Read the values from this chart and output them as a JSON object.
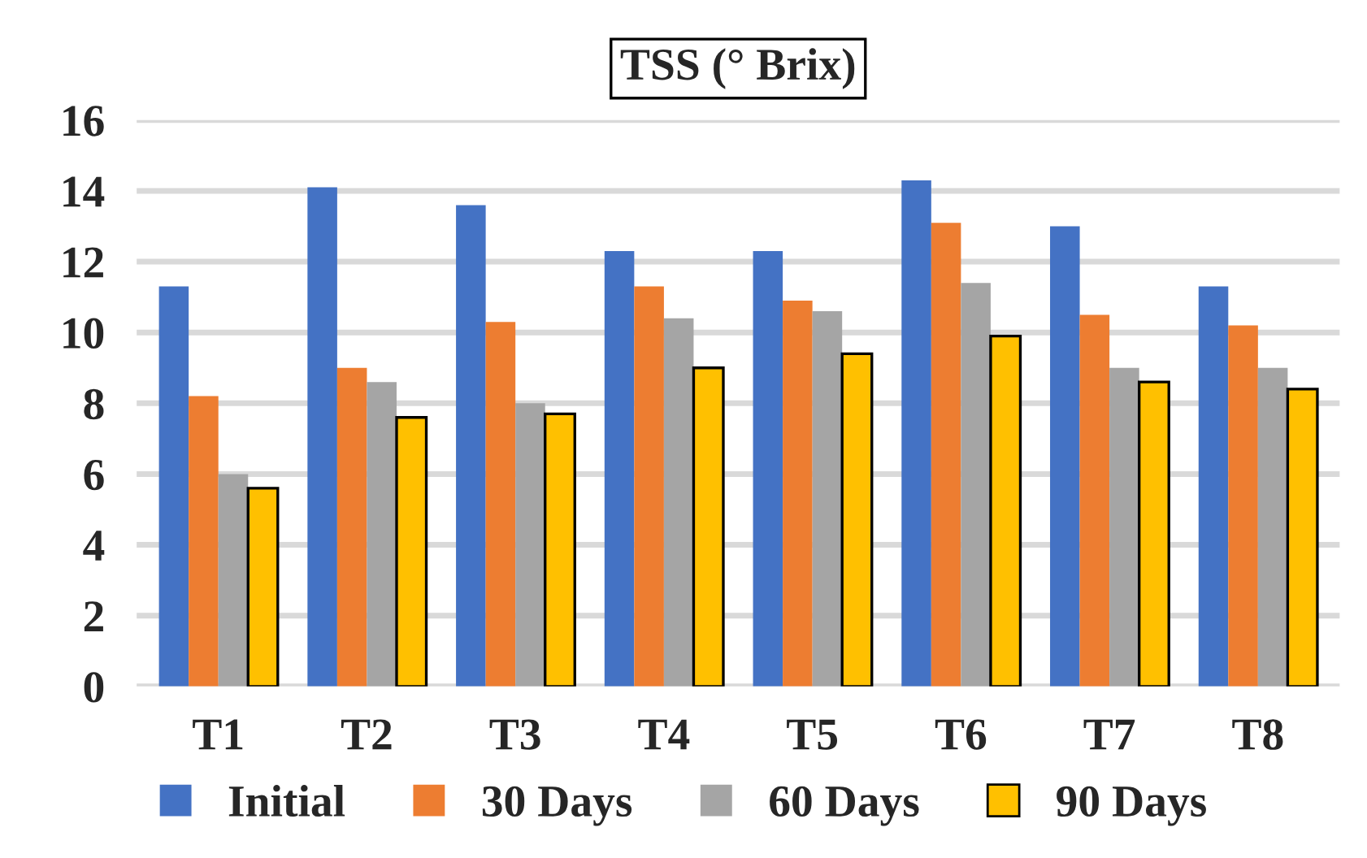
{
  "chart_data": {
    "type": "bar",
    "title": "TSS (° Brix)",
    "categories": [
      "T1",
      "T2",
      "T3",
      "T4",
      "T5",
      "T6",
      "T7",
      "T8"
    ],
    "series": [
      {
        "name": "Initial",
        "color": "#4472c4",
        "values": [
          11.3,
          14.1,
          13.6,
          12.3,
          12.3,
          14.3,
          13.0,
          11.3
        ]
      },
      {
        "name": "30 Days",
        "color": "#ed7d31",
        "values": [
          8.2,
          9.0,
          10.3,
          11.3,
          10.9,
          13.1,
          10.5,
          10.2
        ]
      },
      {
        "name": "60 Days",
        "color": "#a5a5a5",
        "values": [
          6.0,
          8.6,
          8.0,
          10.4,
          10.6,
          11.4,
          9.0,
          9.0
        ]
      },
      {
        "name": "90 Days",
        "color": "#ffc000",
        "values": [
          5.6,
          7.6,
          7.7,
          9.0,
          9.4,
          9.9,
          8.6,
          8.4
        ]
      }
    ],
    "ylim": [
      0,
      16
    ],
    "yticks": [
      0,
      2,
      4,
      6,
      8,
      10,
      12,
      14,
      16
    ],
    "grid": "y",
    "legend": "bottom"
  }
}
